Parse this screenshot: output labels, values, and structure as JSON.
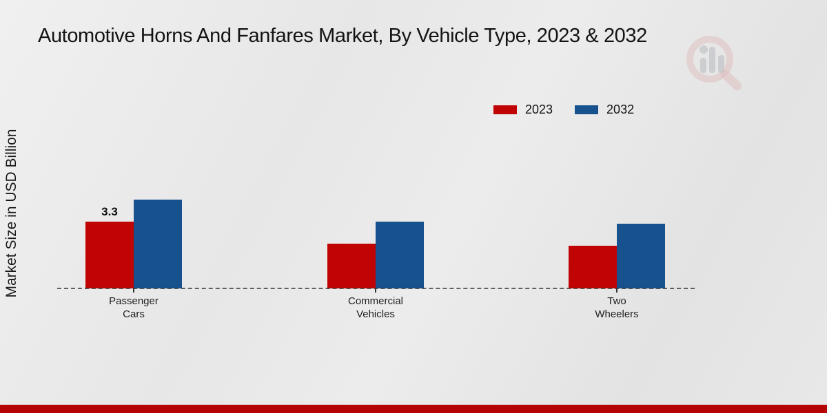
{
  "title": "Automotive Horns And Fanfares Market, By Vehicle Type, 2023 & 2032",
  "y_axis_label": "Market Size in USD Billion",
  "legend": [
    {
      "label": "2023",
      "color": "#c00404"
    },
    {
      "label": "2032",
      "color": "#17518e"
    }
  ],
  "colors": {
    "series_2023": "#c00404",
    "series_2032": "#17518e",
    "bottom_strip": "#b40404",
    "dashed_baseline": "#2d2d2d",
    "text": "#141414",
    "background": "#e9e9e9"
  },
  "watermark_icon": "magnifier-bar-chart-logo",
  "chart_data": {
    "type": "bar",
    "categories": [
      "Passenger Cars",
      "Commercial Vehicles",
      "Two Wheelers"
    ],
    "series": [
      {
        "name": "2023",
        "color": "#c00404",
        "values": [
          3.3,
          2.2,
          2.1
        ]
      },
      {
        "name": "2032",
        "color": "#17518e",
        "values": [
          4.4,
          3.3,
          3.2
        ]
      }
    ],
    "bar_labels": [
      {
        "series": "2023",
        "category": "Passenger Cars",
        "text": "3.3"
      }
    ],
    "title": "Automotive Horns And Fanfares Market, By Vehicle Type, 2023 & 2032",
    "xlabel": "",
    "ylabel": "Market Size in USD Billion",
    "ylim": [
      0,
      5
    ],
    "grid": false,
    "legend_position": "top-right",
    "baseline_style": "dashed",
    "y_axis_ticks_visible": false
  }
}
